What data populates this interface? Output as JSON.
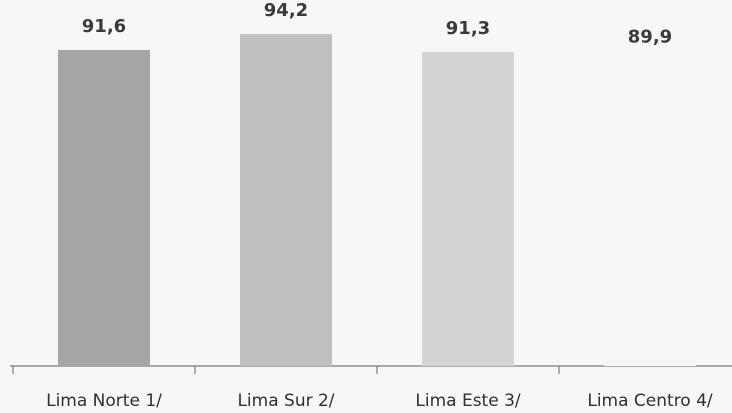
{
  "chart_data": {
    "type": "bar",
    "categories": [
      "Lima Norte 1/",
      "Lima Sur 2/",
      "Lima Este 3/",
      "Lima Centro 4/"
    ],
    "values": [
      91.6,
      94.2,
      91.3,
      89.9
    ],
    "data_labels": [
      "91,6",
      "94,2",
      "91,3",
      "89,9"
    ],
    "bar_colors": [
      "#a6a6a6",
      "#bfbfbf",
      "#d3d3d3",
      "#f7f7f7"
    ],
    "title": "",
    "xlabel": "",
    "ylabel": "",
    "ylim": [
      0,
      100
    ],
    "grid": false,
    "legend": "none"
  }
}
